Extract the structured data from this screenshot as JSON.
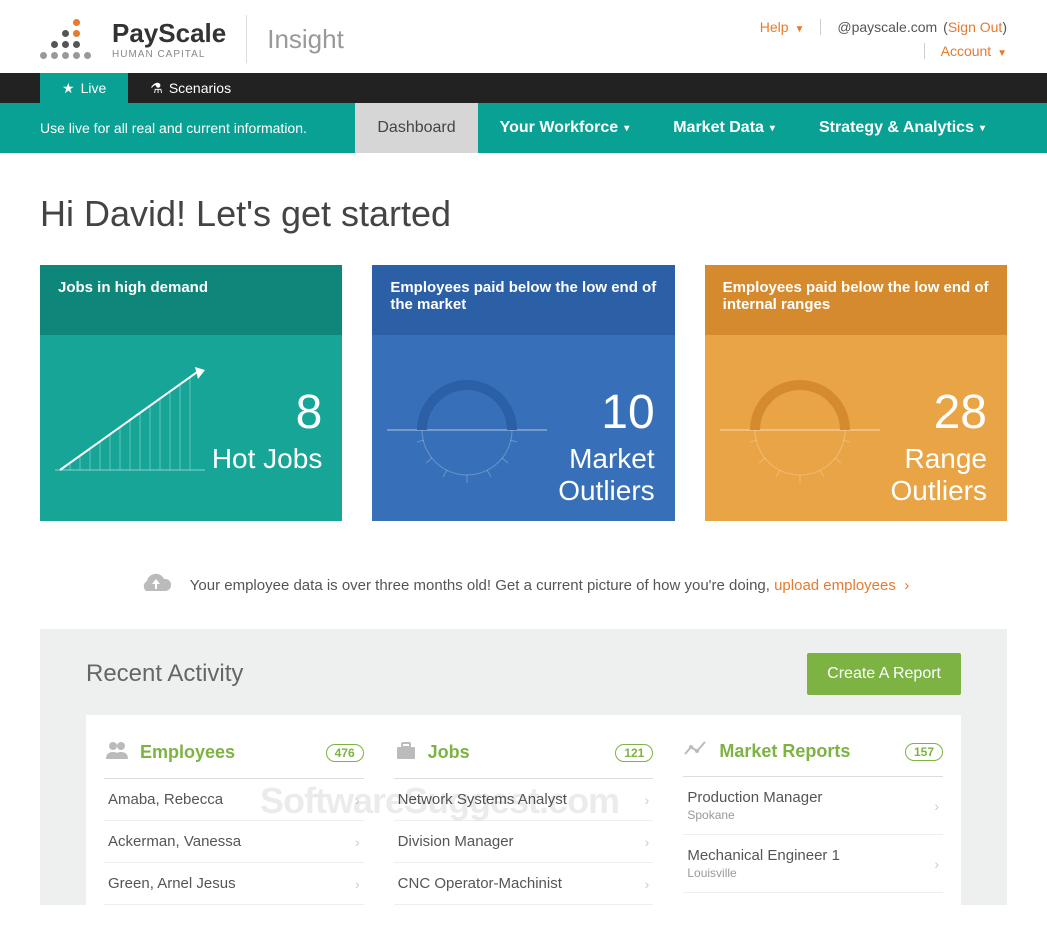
{
  "header": {
    "brand_main": "PayScale",
    "brand_sub": "HUMAN CAPITAL",
    "product": "Insight",
    "help": "Help",
    "account_handle": "@payscale.com",
    "sign_out": "Sign Out",
    "account": "Account"
  },
  "tabs": {
    "live": "Live",
    "scenarios": "Scenarios"
  },
  "subnav": {
    "message": "Use live for all real and current information.",
    "items": [
      "Dashboard",
      "Your Workforce",
      "Market Data",
      "Strategy & Analytics"
    ]
  },
  "greeting": "Hi David! Let's get started",
  "cards": [
    {
      "header": "Jobs in high demand",
      "value": "8",
      "label": "Hot Jobs",
      "header_bg": "#0f867a",
      "body_bg": "#16a597"
    },
    {
      "header": "Employees paid below the low end of the market",
      "value": "10",
      "label": "Market\nOutliers",
      "header_bg": "#2b5fa6",
      "body_bg": "#3770b9"
    },
    {
      "header": "Employees paid below the low end of internal ranges",
      "value": "28",
      "label": "Range\nOutliers",
      "header_bg": "#d68a2e",
      "body_bg": "#e9a445"
    }
  ],
  "alert": {
    "text": "Your employee data is over three months old! Get a current picture of how you're doing,",
    "link": "upload employees"
  },
  "activity": {
    "title": "Recent Activity",
    "create_btn": "Create A Report",
    "columns": [
      {
        "title": "Employees",
        "count": "476",
        "rows": [
          {
            "main": "Amaba, Rebecca"
          },
          {
            "main": "Ackerman, Vanessa"
          },
          {
            "main": "Green, Arnel Jesus"
          }
        ]
      },
      {
        "title": "Jobs",
        "count": "121",
        "rows": [
          {
            "main": "Network Systems Analyst"
          },
          {
            "main": "Division Manager"
          },
          {
            "main": "CNC Operator-Machinist"
          }
        ]
      },
      {
        "title": "Market Reports",
        "count": "157",
        "rows": [
          {
            "main": "Production Manager",
            "sub": "Spokane"
          },
          {
            "main": "Mechanical Engineer 1",
            "sub": "Louisville"
          }
        ]
      }
    ]
  },
  "watermark": "SoftwareSuggest.com"
}
